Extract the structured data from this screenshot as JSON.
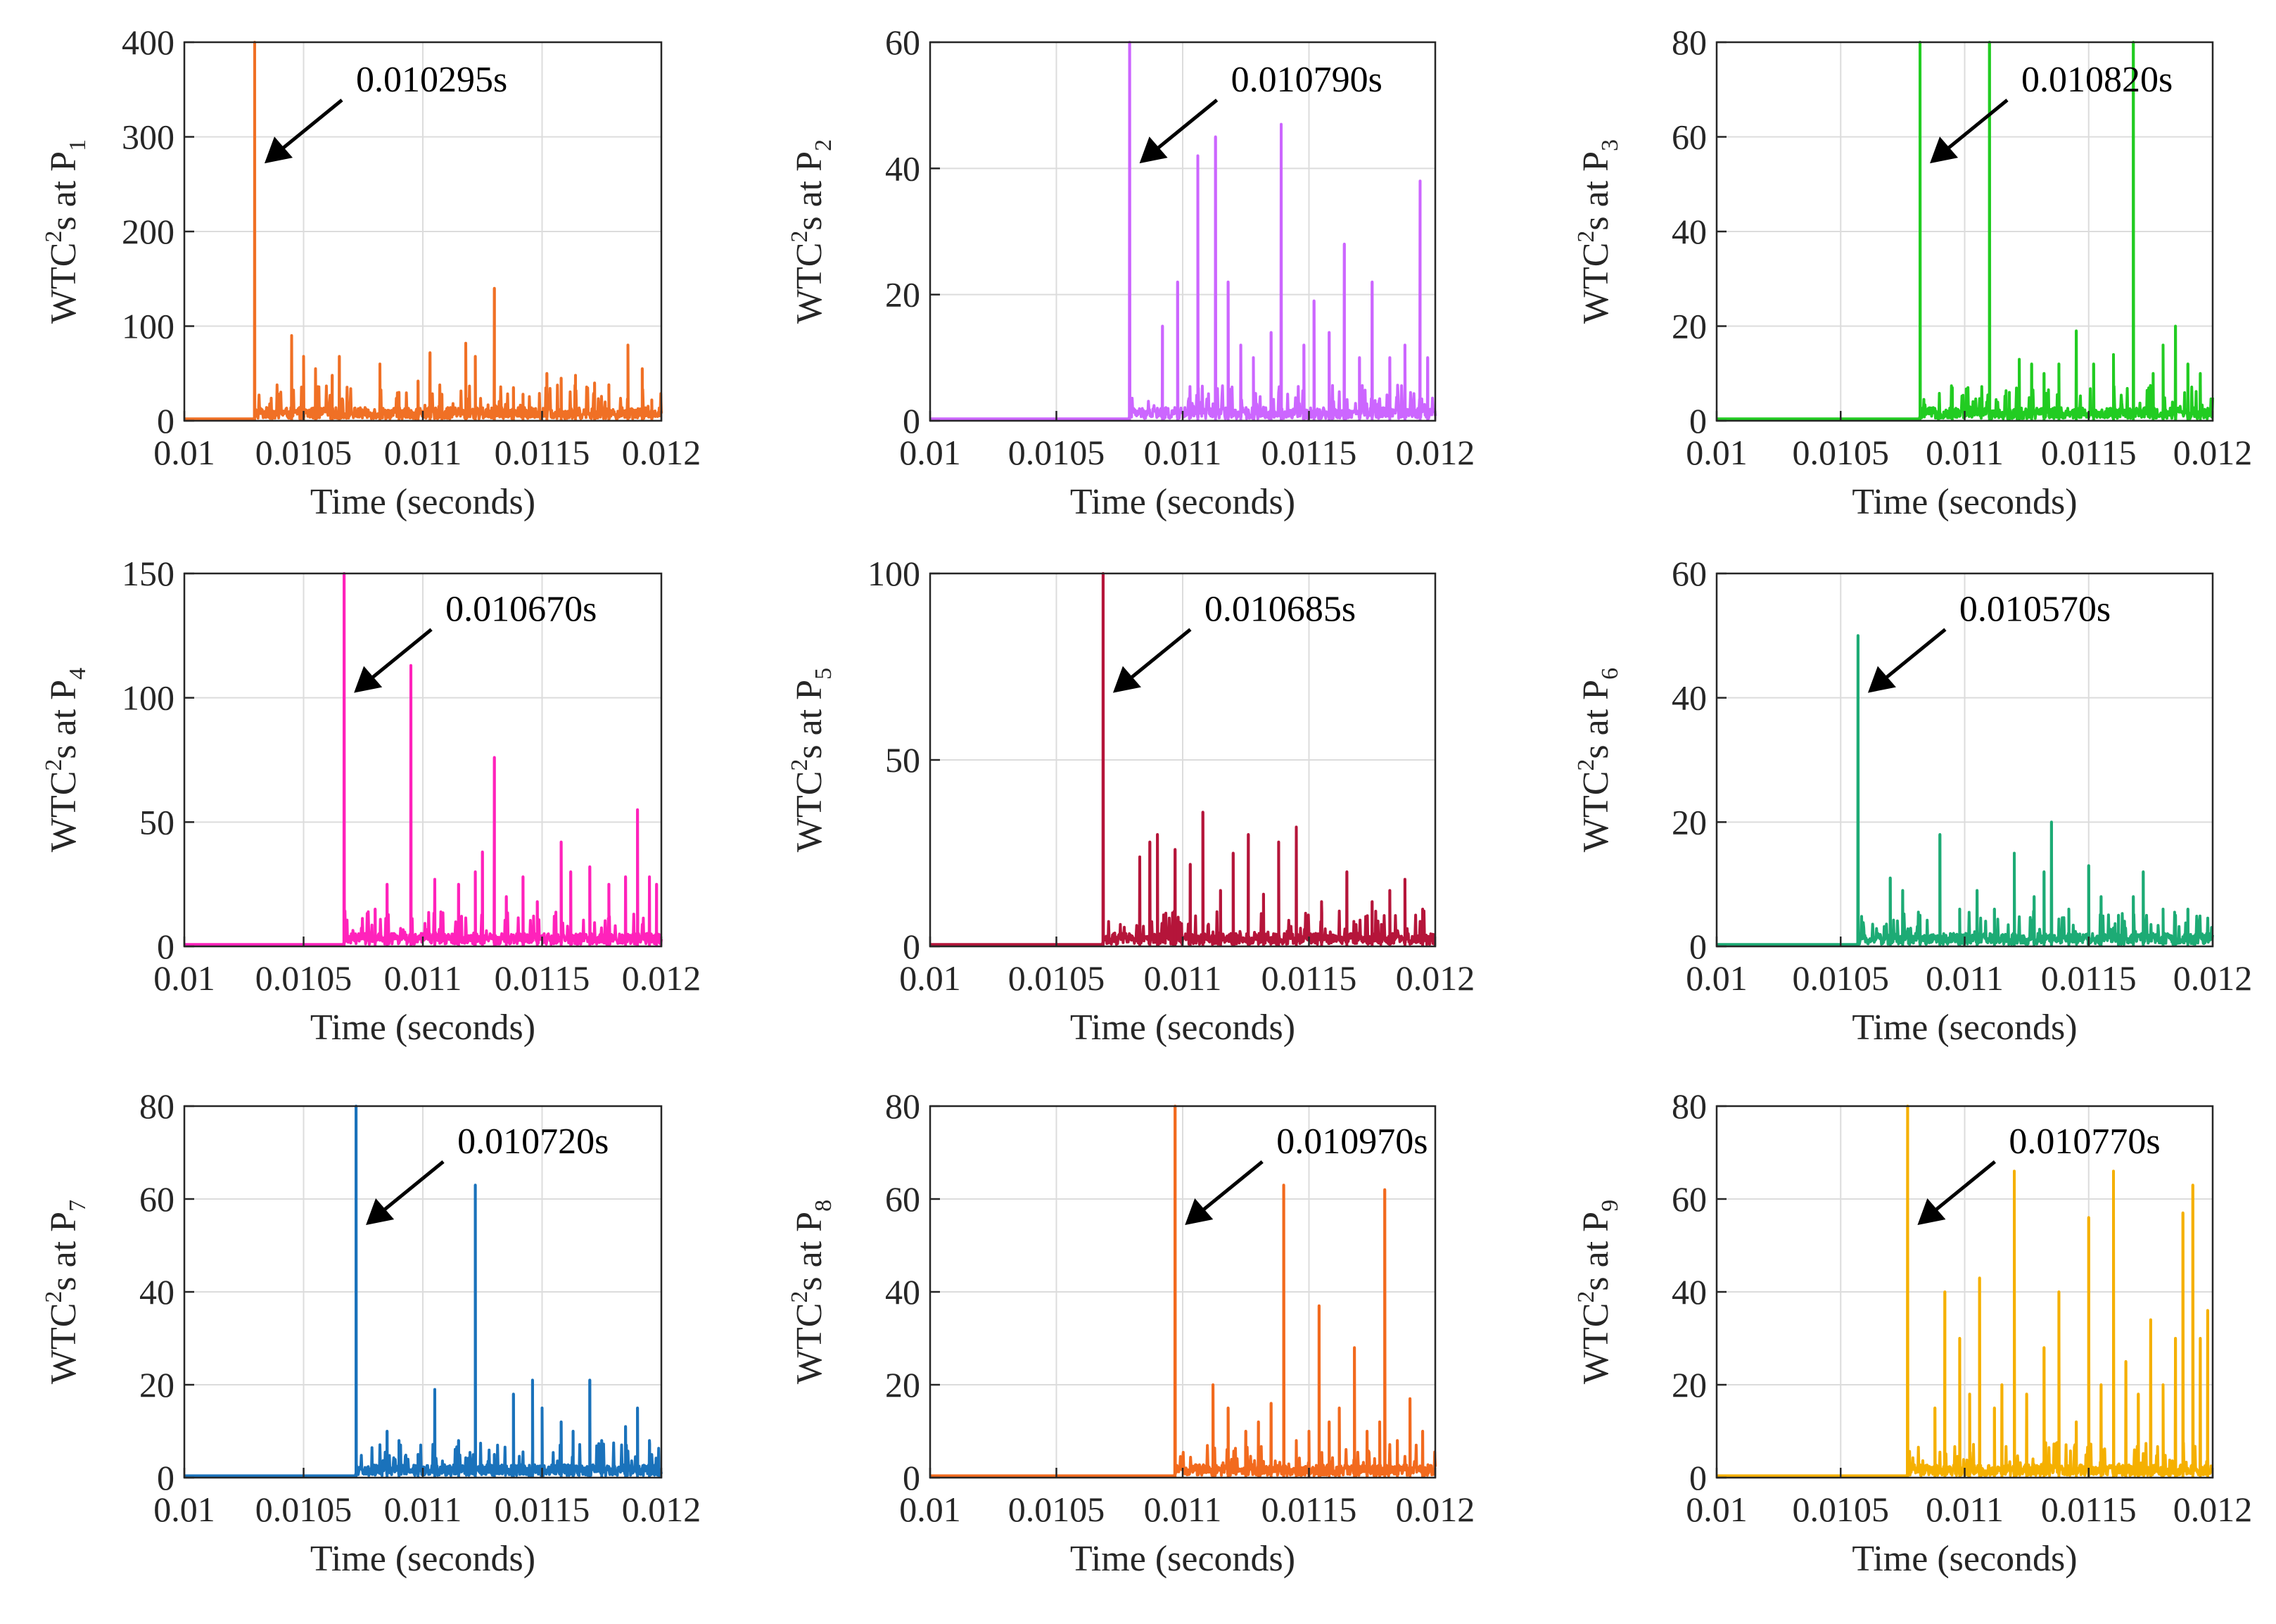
{
  "chart_data": [
    {
      "type": "line",
      "color": "#f07025",
      "xlabel": "Time (seconds)",
      "ylabel": {
        "prefix": "WTC",
        "sup": "2",
        "mid": "s at P",
        "sub": "1"
      },
      "xlim": [
        0.01,
        0.012
      ],
      "ylim": [
        0,
        400
      ],
      "xticks": [
        "0.01",
        "0.0105",
        "0.011",
        "0.0115",
        "0.012"
      ],
      "yticks": [
        "0",
        "100",
        "200",
        "300",
        "400"
      ],
      "annotation": {
        "text": "0.010295s",
        "x": 0.010295,
        "y": 400
      },
      "peaks": [
        [
          0.010295,
          400
        ],
        [
          0.01045,
          90
        ],
        [
          0.0105,
          68
        ],
        [
          0.01055,
          55
        ],
        [
          0.01062,
          48
        ],
        [
          0.01065,
          68
        ],
        [
          0.01082,
          60
        ],
        [
          0.0109,
          30
        ],
        [
          0.01098,
          42
        ],
        [
          0.01103,
          72
        ],
        [
          0.01108,
          28
        ],
        [
          0.01118,
          82
        ],
        [
          0.01122,
          68
        ],
        [
          0.0113,
          140
        ],
        [
          0.01138,
          35
        ],
        [
          0.01142,
          28
        ],
        [
          0.01152,
          50
        ],
        [
          0.01158,
          45
        ],
        [
          0.01164,
          48
        ],
        [
          0.01172,
          40
        ],
        [
          0.01178,
          38
        ],
        [
          0.01186,
          80
        ],
        [
          0.01192,
          55
        ],
        [
          0.01196,
          22
        ]
      ]
    },
    {
      "type": "line",
      "color": "#cc66ff",
      "xlabel": "Time (seconds)",
      "ylabel": {
        "prefix": "WTC",
        "sup": "2",
        "mid": "s at P",
        "sub": "2"
      },
      "xlim": [
        0.01,
        0.012
      ],
      "ylim": [
        0,
        60
      ],
      "xticks": [
        "0.01",
        "0.0105",
        "0.011",
        "0.0115",
        "0.012"
      ],
      "yticks": [
        "0",
        "20",
        "40",
        "60"
      ],
      "annotation": {
        "text": "0.010790s",
        "x": 0.01079,
        "y": 60
      },
      "peaks": [
        [
          0.01079,
          60
        ],
        [
          0.01092,
          15
        ],
        [
          0.01098,
          22
        ],
        [
          0.01106,
          42
        ],
        [
          0.01113,
          45
        ],
        [
          0.01118,
          22
        ],
        [
          0.01123,
          12
        ],
        [
          0.01128,
          10
        ],
        [
          0.01135,
          14
        ],
        [
          0.01139,
          47
        ],
        [
          0.01148,
          12
        ],
        [
          0.01152,
          19
        ],
        [
          0.01158,
          14
        ],
        [
          0.01164,
          28
        ],
        [
          0.0117,
          10
        ],
        [
          0.01175,
          22
        ],
        [
          0.01182,
          10
        ],
        [
          0.01188,
          12
        ],
        [
          0.01194,
          38
        ],
        [
          0.01197,
          10
        ]
      ]
    },
    {
      "type": "line",
      "color": "#22cc22",
      "xlabel": "Time (seconds)",
      "ylabel": {
        "prefix": "WTC",
        "sup": "2",
        "mid": "s at P",
        "sub": "3"
      },
      "xlim": [
        0.01,
        0.012
      ],
      "ylim": [
        0,
        80
      ],
      "xticks": [
        "0.01",
        "0.0105",
        "0.011",
        "0.0115",
        "0.012"
      ],
      "yticks": [
        "0",
        "20",
        "40",
        "60",
        "80"
      ],
      "annotation": {
        "text": "0.010820s",
        "x": 0.01082,
        "y": 80
      },
      "peaks": [
        [
          0.01082,
          80
        ],
        [
          0.01095,
          7
        ],
        [
          0.0111,
          80
        ],
        [
          0.01118,
          6
        ],
        [
          0.01122,
          13
        ],
        [
          0.01127,
          12
        ],
        [
          0.01132,
          10
        ],
        [
          0.01138,
          12
        ],
        [
          0.01145,
          19
        ],
        [
          0.01152,
          12
        ],
        [
          0.0116,
          14
        ],
        [
          0.01168,
          80
        ],
        [
          0.01176,
          10
        ],
        [
          0.0118,
          16
        ],
        [
          0.01185,
          20
        ],
        [
          0.0119,
          12
        ],
        [
          0.01195,
          10
        ]
      ]
    },
    {
      "type": "line",
      "color": "#ff22bb",
      "xlabel": "Time (seconds)",
      "ylabel": {
        "prefix": "WTC",
        "sup": "2",
        "mid": "s at P",
        "sub": "4"
      },
      "xlim": [
        0.01,
        0.012
      ],
      "ylim": [
        0,
        150
      ],
      "xticks": [
        "0.01",
        "0.0105",
        "0.011",
        "0.0115",
        "0.012"
      ],
      "yticks": [
        "0",
        "50",
        "100",
        "150"
      ],
      "annotation": {
        "text": "0.010670s",
        "x": 0.01067,
        "y": 150
      },
      "peaks": [
        [
          0.01067,
          150
        ],
        [
          0.0108,
          15
        ],
        [
          0.01085,
          25
        ],
        [
          0.01095,
          113
        ],
        [
          0.01105,
          27
        ],
        [
          0.01115,
          25
        ],
        [
          0.01122,
          30
        ],
        [
          0.01125,
          38
        ],
        [
          0.0113,
          76
        ],
        [
          0.01135,
          20
        ],
        [
          0.01142,
          28
        ],
        [
          0.01148,
          18
        ],
        [
          0.01158,
          42
        ],
        [
          0.01162,
          30
        ],
        [
          0.0117,
          32
        ],
        [
          0.01178,
          25
        ],
        [
          0.01185,
          28
        ],
        [
          0.0119,
          55
        ],
        [
          0.01195,
          28
        ],
        [
          0.01198,
          25
        ]
      ]
    },
    {
      "type": "line",
      "color": "#b5153a",
      "xlabel": "Time (seconds)",
      "ylabel": {
        "prefix": "WTC",
        "sup": "2",
        "mid": "s at P",
        "sub": "5"
      },
      "xlim": [
        0.01,
        0.012
      ],
      "ylim": [
        0,
        100
      ],
      "xticks": [
        "0.01",
        "0.0105",
        "0.011",
        "0.0115",
        "0.012"
      ],
      "yticks": [
        "0",
        "50",
        "100"
      ],
      "annotation": {
        "text": "0.010685s",
        "x": 0.010685,
        "y": 100
      },
      "peaks": [
        [
          0.010685,
          100
        ],
        [
          0.01083,
          24
        ],
        [
          0.01087,
          28
        ],
        [
          0.0109,
          30
        ],
        [
          0.01097,
          26
        ],
        [
          0.01103,
          22
        ],
        [
          0.01108,
          36
        ],
        [
          0.01115,
          15
        ],
        [
          0.0112,
          25
        ],
        [
          0.01126,
          30
        ],
        [
          0.01132,
          14
        ],
        [
          0.01138,
          28
        ],
        [
          0.01145,
          32
        ],
        [
          0.01155,
          12
        ],
        [
          0.01165,
          20
        ],
        [
          0.01175,
          12
        ],
        [
          0.01182,
          15
        ],
        [
          0.01188,
          18
        ],
        [
          0.01195,
          10
        ]
      ]
    },
    {
      "type": "line",
      "color": "#1dab75",
      "xlabel": "Time (seconds)",
      "ylabel": {
        "prefix": "WTC",
        "sup": "2",
        "mid": "s at P",
        "sub": "6"
      },
      "xlim": [
        0.01,
        0.012
      ],
      "ylim": [
        0,
        60
      ],
      "xticks": [
        "0.01",
        "0.0105",
        "0.011",
        "0.0115",
        "0.012"
      ],
      "yticks": [
        "0",
        "20",
        "40",
        "60"
      ],
      "annotation": {
        "text": "0.010570s",
        "x": 0.01057,
        "y": 50
      },
      "peaks": [
        [
          0.01057,
          50
        ],
        [
          0.0107,
          11
        ],
        [
          0.01075,
          9
        ],
        [
          0.01082,
          5
        ],
        [
          0.0109,
          18
        ],
        [
          0.01098,
          6
        ],
        [
          0.01105,
          9
        ],
        [
          0.01112,
          6
        ],
        [
          0.0112,
          15
        ],
        [
          0.01128,
          8
        ],
        [
          0.01132,
          12
        ],
        [
          0.01135,
          20
        ],
        [
          0.01142,
          6
        ],
        [
          0.0115,
          13
        ],
        [
          0.01155,
          8
        ],
        [
          0.01162,
          5
        ],
        [
          0.01168,
          8
        ],
        [
          0.01172,
          12
        ],
        [
          0.0118,
          6
        ],
        [
          0.01185,
          5
        ],
        [
          0.0119,
          6
        ]
      ]
    },
    {
      "type": "line",
      "color": "#1a72bb",
      "xlabel": "Time (seconds)",
      "ylabel": {
        "prefix": "WTC",
        "sup": "2",
        "mid": "s at P",
        "sub": "7"
      },
      "xlim": [
        0.01,
        0.012
      ],
      "ylim": [
        0,
        80
      ],
      "xticks": [
        "0.01",
        "0.0105",
        "0.011",
        "0.0115",
        "0.012"
      ],
      "yticks": [
        "0",
        "20",
        "40",
        "60",
        "80"
      ],
      "annotation": {
        "text": "0.010720s",
        "x": 0.01072,
        "y": 80
      },
      "peaks": [
        [
          0.01072,
          80
        ],
        [
          0.01085,
          10
        ],
        [
          0.0109,
          8
        ],
        [
          0.01098,
          5
        ],
        [
          0.01105,
          19
        ],
        [
          0.01115,
          8
        ],
        [
          0.01122,
          63
        ],
        [
          0.0113,
          5
        ],
        [
          0.01138,
          18
        ],
        [
          0.01146,
          21
        ],
        [
          0.0115,
          15
        ],
        [
          0.01158,
          12
        ],
        [
          0.01163,
          10
        ],
        [
          0.0117,
          21
        ],
        [
          0.01175,
          8
        ],
        [
          0.01185,
          11
        ],
        [
          0.0119,
          15
        ],
        [
          0.01195,
          8
        ]
      ]
    },
    {
      "type": "line",
      "color": "#f26a1e",
      "xlabel": "Time (seconds)",
      "ylabel": {
        "prefix": "WTC",
        "sup": "2",
        "mid": "s at P",
        "sub": "8"
      },
      "xlim": [
        0.01,
        0.012
      ],
      "ylim": [
        0,
        80
      ],
      "xticks": [
        "0.01",
        "0.0105",
        "0.011",
        "0.0115",
        "0.012"
      ],
      "yticks": [
        "0",
        "20",
        "40",
        "60",
        "80"
      ],
      "annotation": {
        "text": "0.010970s",
        "x": 0.01097,
        "y": 80
      },
      "peaks": [
        [
          0.01097,
          80
        ],
        [
          0.01112,
          20
        ],
        [
          0.01118,
          15
        ],
        [
          0.01125,
          10
        ],
        [
          0.0113,
          12
        ],
        [
          0.01135,
          16
        ],
        [
          0.0114,
          63
        ],
        [
          0.01145,
          8
        ],
        [
          0.0115,
          10
        ],
        [
          0.01154,
          37
        ],
        [
          0.01158,
          12
        ],
        [
          0.01162,
          15
        ],
        [
          0.01168,
          28
        ],
        [
          0.01173,
          10
        ],
        [
          0.01178,
          12
        ],
        [
          0.0118,
          62
        ],
        [
          0.01185,
          8
        ],
        [
          0.0119,
          17
        ],
        [
          0.01195,
          10
        ]
      ]
    },
    {
      "type": "line",
      "color": "#f5b000",
      "xlabel": "Time (seconds)",
      "ylabel": {
        "prefix": "WTC",
        "sup": "2",
        "mid": "s at P",
        "sub": "9"
      },
      "xlim": [
        0.01,
        0.012
      ],
      "ylim": [
        0,
        80
      ],
      "xticks": [
        "0.01",
        "0.0105",
        "0.011",
        "0.0115",
        "0.012"
      ],
      "yticks": [
        "0",
        "20",
        "40",
        "60",
        "80"
      ],
      "annotation": {
        "text": "0.010770s",
        "x": 0.01077,
        "y": 80
      },
      "peaks": [
        [
          0.01077,
          80
        ],
        [
          0.01088,
          15
        ],
        [
          0.01092,
          40
        ],
        [
          0.01098,
          30
        ],
        [
          0.01102,
          18
        ],
        [
          0.01106,
          43
        ],
        [
          0.01112,
          15
        ],
        [
          0.01115,
          20
        ],
        [
          0.0112,
          66
        ],
        [
          0.01125,
          18
        ],
        [
          0.01132,
          28
        ],
        [
          0.01138,
          40
        ],
        [
          0.01145,
          12
        ],
        [
          0.0115,
          56
        ],
        [
          0.01155,
          20
        ],
        [
          0.0116,
          66
        ],
        [
          0.01165,
          25
        ],
        [
          0.0117,
          18
        ],
        [
          0.01175,
          34
        ],
        [
          0.0118,
          20
        ],
        [
          0.01185,
          30
        ],
        [
          0.01188,
          57
        ],
        [
          0.01192,
          63
        ],
        [
          0.01195,
          30
        ],
        [
          0.01198,
          36
        ]
      ]
    }
  ]
}
